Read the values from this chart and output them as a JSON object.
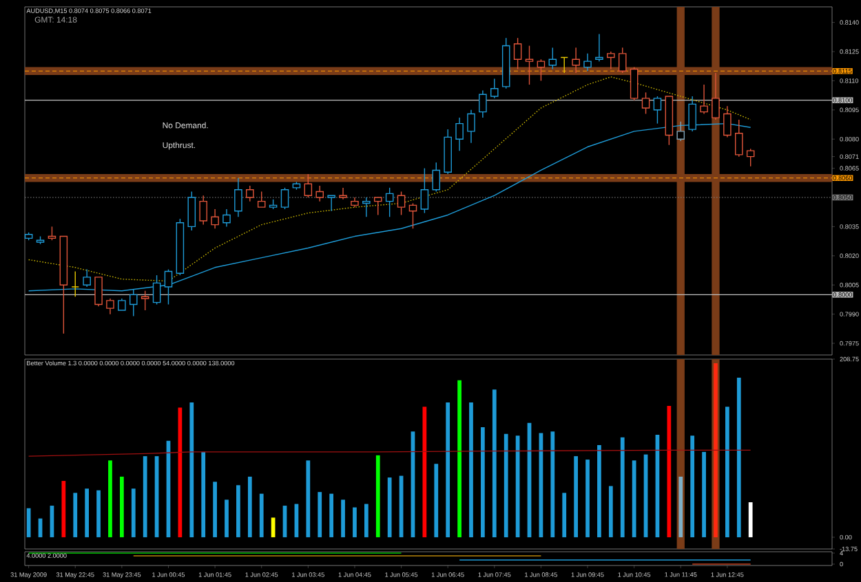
{
  "chart_data": [
    {
      "type": "candlestick",
      "title": "AUDUSD,M15 0.8074 0.8075 0.8066 0.8071",
      "subtitle": "GMT: 14:18",
      "x": [
        "2009-05-31T21:45",
        "2009-05-31T22:00",
        "2009-05-31T22:15",
        "2009-05-31T22:30",
        "2009-05-31T22:45",
        "2009-05-31T23:00",
        "2009-05-31T23:15",
        "2009-05-31T23:30",
        "2009-05-31T23:45",
        "2009-06-01T00:00",
        "2009-06-01T00:15",
        "2009-06-01T00:30",
        "2009-06-01T00:45",
        "2009-06-01T01:00",
        "2009-06-01T01:15",
        "2009-06-01T01:30",
        "2009-06-01T01:45",
        "2009-06-01T02:00",
        "2009-06-01T02:15",
        "2009-06-01T02:30",
        "2009-06-01T02:45",
        "2009-06-01T03:00",
        "2009-06-01T03:15",
        "2009-06-01T03:30",
        "2009-06-01T03:45",
        "2009-06-01T04:00",
        "2009-06-01T04:15",
        "2009-06-01T04:30",
        "2009-06-01T04:45",
        "2009-06-01T05:00",
        "2009-06-01T05:15",
        "2009-06-01T05:30",
        "2009-06-01T05:45",
        "2009-06-01T06:00",
        "2009-06-01T06:15",
        "2009-06-01T06:30",
        "2009-06-01T06:45",
        "2009-06-01T07:00",
        "2009-06-01T07:15",
        "2009-06-01T07:30",
        "2009-06-01T07:45",
        "2009-06-01T08:00",
        "2009-06-01T08:15",
        "2009-06-01T08:30",
        "2009-06-01T08:45",
        "2009-06-01T09:00",
        "2009-06-01T09:15",
        "2009-06-01T09:30",
        "2009-06-01T09:45",
        "2009-06-01T10:00",
        "2009-06-01T10:15",
        "2009-06-01T10:30",
        "2009-06-01T10:45",
        "2009-06-01T11:00",
        "2009-06-01T11:15",
        "2009-06-01T11:30",
        "2009-06-01T11:45",
        "2009-06-01T12:00",
        "2009-06-01T12:15",
        "2009-06-01T12:30",
        "2009-06-01T12:45",
        "2009-06-01T13:00",
        "2009-06-01T13:15"
      ],
      "ohlc": [
        [
          0.8029,
          0.8032,
          0.8028,
          0.8031
        ],
        [
          0.8027,
          0.803,
          0.8026,
          0.8028
        ],
        [
          0.803,
          0.8035,
          0.8028,
          0.8029
        ],
        [
          0.803,
          0.803,
          0.798,
          0.8005
        ],
        [
          0.8004,
          0.8012,
          0.7999,
          0.8004
        ],
        [
          0.8005,
          0.8013,
          0.8004,
          0.8009
        ],
        [
          0.8009,
          0.8009,
          0.7994,
          0.7995
        ],
        [
          0.7997,
          0.7998,
          0.799,
          0.7993
        ],
        [
          0.7992,
          0.7998,
          0.7992,
          0.7997
        ],
        [
          0.7995,
          0.8003,
          0.7989,
          0.8
        ],
        [
          0.7999,
          0.8002,
          0.7992,
          0.7998
        ],
        [
          0.7996,
          0.801,
          0.7995,
          0.8006
        ],
        [
          0.8004,
          0.8013,
          0.7995,
          0.8012
        ],
        [
          0.8011,
          0.8039,
          0.801,
          0.8037
        ],
        [
          0.8035,
          0.8053,
          0.8033,
          0.805
        ],
        [
          0.8048,
          0.8051,
          0.8036,
          0.8038
        ],
        [
          0.804,
          0.8044,
          0.8034,
          0.8036
        ],
        [
          0.8037,
          0.8044,
          0.8035,
          0.8041
        ],
        [
          0.8043,
          0.806,
          0.804,
          0.8054
        ],
        [
          0.8054,
          0.8056,
          0.8048,
          0.805
        ],
        [
          0.8048,
          0.8053,
          0.8045,
          0.8045
        ],
        [
          0.8045,
          0.8049,
          0.8044,
          0.8046
        ],
        [
          0.8045,
          0.8055,
          0.8044,
          0.8054
        ],
        [
          0.8055,
          0.8058,
          0.8054,
          0.8057
        ],
        [
          0.8057,
          0.8062,
          0.805,
          0.8051
        ],
        [
          0.8053,
          0.8056,
          0.8048,
          0.805
        ],
        [
          0.805,
          0.8051,
          0.8043,
          0.8051
        ],
        [
          0.8051,
          0.8055,
          0.8049,
          0.805
        ],
        [
          0.8048,
          0.805,
          0.8045,
          0.8046
        ],
        [
          0.8047,
          0.805,
          0.804,
          0.8048
        ],
        [
          0.805,
          0.805,
          0.8041,
          0.8048
        ],
        [
          0.8048,
          0.8055,
          0.804,
          0.8052
        ],
        [
          0.8051,
          0.8053,
          0.8041,
          0.8045
        ],
        [
          0.8046,
          0.8047,
          0.8034,
          0.8043
        ],
        [
          0.8044,
          0.8065,
          0.8042,
          0.8054
        ],
        [
          0.8054,
          0.8068,
          0.8053,
          0.8064
        ],
        [
          0.8063,
          0.8085,
          0.8062,
          0.8081
        ],
        [
          0.808,
          0.8091,
          0.8074,
          0.8088
        ],
        [
          0.8084,
          0.8095,
          0.8078,
          0.8093
        ],
        [
          0.8094,
          0.8105,
          0.8091,
          0.8103
        ],
        [
          0.8102,
          0.8111,
          0.8101,
          0.8106
        ],
        [
          0.8107,
          0.8132,
          0.8106,
          0.8128
        ],
        [
          0.8129,
          0.8132,
          0.8116,
          0.8121
        ],
        [
          0.8121,
          0.8128,
          0.8108,
          0.812
        ],
        [
          0.812,
          0.8121,
          0.811,
          0.8117
        ],
        [
          0.8118,
          0.8127,
          0.8116,
          0.8121
        ],
        [
          0.8122,
          0.8122,
          0.8114,
          0.8122
        ],
        [
          0.8121,
          0.8127,
          0.8114,
          0.8118
        ],
        [
          0.8117,
          0.8124,
          0.8115,
          0.812
        ],
        [
          0.8121,
          0.8134,
          0.812,
          0.8122
        ],
        [
          0.8124,
          0.8125,
          0.8116,
          0.8122
        ],
        [
          0.8124,
          0.8127,
          0.8114,
          0.8115
        ],
        [
          0.8116,
          0.8117,
          0.81,
          0.8101
        ],
        [
          0.8101,
          0.8104,
          0.8093,
          0.8096
        ],
        [
          0.8095,
          0.8102,
          0.8088,
          0.8101
        ],
        [
          0.8102,
          0.8102,
          0.8077,
          0.8082
        ],
        [
          0.808,
          0.8089,
          0.8079,
          0.8084
        ],
        [
          0.8085,
          0.8102,
          0.8084,
          0.8098
        ],
        [
          0.8097,
          0.8108,
          0.8093,
          0.8094
        ],
        [
          0.8101,
          0.8114,
          0.809,
          0.8091
        ],
        [
          0.8093,
          0.8097,
          0.8081,
          0.8082
        ],
        [
          0.8083,
          0.809,
          0.8071,
          0.8072
        ],
        [
          0.8074,
          0.8075,
          0.8066,
          0.8071
        ]
      ],
      "colors": [
        "#1e9bd7",
        "#1e9bd7",
        "#e0553a",
        "#e0553a",
        "#e6c700",
        "#1e9bd7",
        "#e0553a",
        "#e0553a",
        "#1e9bd7",
        "#1e9bd7",
        "#e0553a",
        "#1e9bd7",
        "#1e9bd7",
        "#1e9bd7",
        "#1e9bd7",
        "#e0553a",
        "#e0553a",
        "#1e9bd7",
        "#1e9bd7",
        "#e0553a",
        "#e0553a",
        "#1e9bd7",
        "#1e9bd7",
        "#1e9bd7",
        "#e0553a",
        "#e0553a",
        "#1e9bd7",
        "#e0553a",
        "#e0553a",
        "#1e9bd7",
        "#e0553a",
        "#1e9bd7",
        "#e0553a",
        "#e0553a",
        "#1e9bd7",
        "#1e9bd7",
        "#1e9bd7",
        "#1e9bd7",
        "#1e9bd7",
        "#1e9bd7",
        "#1e9bd7",
        "#1e9bd7",
        "#e0553a",
        "#e0553a",
        "#e0553a",
        "#1e9bd7",
        "#e6c700",
        "#e0553a",
        "#1e9bd7",
        "#1e9bd7",
        "#e0553a",
        "#e0553a",
        "#e0553a",
        "#e0553a",
        "#1e9bd7",
        "#e0553a",
        "#7fa3b8",
        "#1e9bd7",
        "#e0553a",
        "#e0553a",
        "#e0553a",
        "#e0553a",
        "#e0553a"
      ],
      "series": [
        {
          "type": "line",
          "color": "#c8b400",
          "line_style": "dotted",
          "x": [
            "2009-05-31T21:45",
            "2009-05-31T22:45",
            "2009-05-31T23:45",
            "2009-06-01T00:45",
            "2009-06-01T01:45",
            "2009-06-01T02:45",
            "2009-06-01T03:45",
            "2009-06-01T04:45",
            "2009-06-01T05:45",
            "2009-06-01T06:45",
            "2009-06-01T07:45",
            "2009-06-01T08:45",
            "2009-06-01T09:45",
            "2009-06-01T10:15",
            "2009-06-01T10:45",
            "2009-06-01T11:45",
            "2009-06-01T12:45",
            "2009-06-01T13:15"
          ],
          "values": [
            0.8018,
            0.8014,
            0.8008,
            0.8007,
            0.8024,
            0.8036,
            0.8042,
            0.8045,
            0.8047,
            0.8054,
            0.8075,
            0.8096,
            0.8108,
            0.8112,
            0.8109,
            0.8102,
            0.8095,
            0.809
          ]
        },
        {
          "type": "line",
          "color": "#1e9bd7",
          "line_style": "solid",
          "x": [
            "2009-05-31T21:45",
            "2009-05-31T22:45",
            "2009-05-31T23:45",
            "2009-06-01T00:45",
            "2009-06-01T01:45",
            "2009-06-01T02:45",
            "2009-06-01T03:45",
            "2009-06-01T04:45",
            "2009-06-01T05:45",
            "2009-06-01T06:45",
            "2009-06-01T07:45",
            "2009-06-01T08:45",
            "2009-06-01T09:45",
            "2009-06-01T10:45",
            "2009-06-01T11:45",
            "2009-06-01T12:45",
            "2009-06-01T13:15"
          ],
          "values": [
            0.8002,
            0.8003,
            0.8002,
            0.8005,
            0.8014,
            0.8019,
            0.8024,
            0.803,
            0.8034,
            0.8041,
            0.8051,
            0.8064,
            0.8076,
            0.8084,
            0.8087,
            0.8088,
            0.8086
          ]
        }
      ],
      "xlim": [
        "2009-05-31T21:40",
        "2009-06-01T15:00"
      ],
      "ylim": [
        0.7969,
        0.8148
      ],
      "yticks": [
        {
          "value": 0.814,
          "label": "0.8140"
        },
        {
          "value": 0.8125,
          "label": "0.8125"
        },
        {
          "value": 0.811,
          "label": "0.8110"
        },
        {
          "value": 0.8095,
          "label": "0.8095"
        },
        {
          "value": 0.808,
          "label": "0.8080"
        },
        {
          "value": 0.8071,
          "label": "0.8071"
        },
        {
          "value": 0.8065,
          "label": "0.8065"
        },
        {
          "value": 0.8035,
          "label": "0.8035"
        },
        {
          "value": 0.802,
          "label": "0.8020"
        },
        {
          "value": 0.8005,
          "label": "0.8005"
        },
        {
          "value": 0.799,
          "label": "0.7990"
        },
        {
          "value": 0.7975,
          "label": "0.7975"
        }
      ],
      "tick_labels": "y",
      "ref_lines": [
        {
          "axis": "y",
          "value": 0.8115,
          "label": "0.8115",
          "color": "#ff9900",
          "line_style": "dashed"
        },
        {
          "axis": "y",
          "value": 0.81,
          "label": "0.8100",
          "color": "#c0c0c0",
          "line_style": "solid"
        },
        {
          "axis": "y",
          "value": 0.806,
          "label": "0.8060",
          "color": "#ff9900",
          "line_style": "dashed"
        },
        {
          "axis": "y",
          "value": 0.805,
          "label": "0.8050",
          "color": "#808080",
          "line_style": "dotted"
        },
        {
          "axis": "y",
          "value": 0.8,
          "label": "0.8000",
          "color": "#c0c0c0",
          "line_style": "solid"
        }
      ],
      "bands": [
        {
          "axis": "y",
          "from": 0.8113,
          "to": 0.8117,
          "color": "#7a3c18"
        },
        {
          "axis": "y",
          "from": 0.8058,
          "to": 0.8062,
          "color": "#7a3c18"
        },
        {
          "axis": "x",
          "from": "2009-06-01T11:40",
          "to": "2009-06-01T11:50",
          "color": "#7a3c18"
        },
        {
          "axis": "x",
          "from": "2009-06-01T12:25",
          "to": "2009-06-01T12:35",
          "color": "#7a3c18"
        }
      ],
      "annotations": [
        "No Demand.",
        "Upthrust."
      ]
    },
    {
      "type": "bar",
      "title": "Better Volume 1.3 0.0000 0.0000 0.0000 0.0000 54.0000 0.0000 138.0000",
      "x": [
        "2009-05-31T21:45",
        "2009-05-31T22:00",
        "2009-05-31T22:15",
        "2009-05-31T22:30",
        "2009-05-31T22:45",
        "2009-05-31T23:00",
        "2009-05-31T23:15",
        "2009-05-31T23:30",
        "2009-05-31T23:45",
        "2009-06-01T00:00",
        "2009-06-01T00:15",
        "2009-06-01T00:30",
        "2009-06-01T00:45",
        "2009-06-01T01:00",
        "2009-06-01T01:15",
        "2009-06-01T01:30",
        "2009-06-01T01:45",
        "2009-06-01T02:00",
        "2009-06-01T02:15",
        "2009-06-01T02:30",
        "2009-06-01T02:45",
        "2009-06-01T03:00",
        "2009-06-01T03:15",
        "2009-06-01T03:30",
        "2009-06-01T03:45",
        "2009-06-01T04:00",
        "2009-06-01T04:15",
        "2009-06-01T04:30",
        "2009-06-01T04:45",
        "2009-06-01T05:00",
        "2009-06-01T05:15",
        "2009-06-01T05:30",
        "2009-06-01T05:45",
        "2009-06-01T06:00",
        "2009-06-01T06:15",
        "2009-06-01T06:30",
        "2009-06-01T06:45",
        "2009-06-01T07:00",
        "2009-06-01T07:15",
        "2009-06-01T07:30",
        "2009-06-01T07:45",
        "2009-06-01T08:00",
        "2009-06-01T08:15",
        "2009-06-01T08:30",
        "2009-06-01T08:45",
        "2009-06-01T09:00",
        "2009-06-01T09:15",
        "2009-06-01T09:30",
        "2009-06-01T09:45",
        "2009-06-01T10:00",
        "2009-06-01T10:15",
        "2009-06-01T10:30",
        "2009-06-01T10:45",
        "2009-06-01T11:00",
        "2009-06-01T11:15",
        "2009-06-01T11:30",
        "2009-06-01T11:45",
        "2009-06-01T12:00",
        "2009-06-01T12:15",
        "2009-06-01T12:30",
        "2009-06-01T12:45",
        "2009-06-01T13:00",
        "2009-06-01T13:15"
      ],
      "series": [
        {
          "type": "bar",
          "values": [
            34,
            22,
            37,
            66,
            52,
            57,
            55,
            90,
            71,
            57,
            95,
            95,
            113,
            152,
            158,
            100,
            65,
            44,
            61,
            71,
            51,
            23,
            37,
            39,
            90,
            53,
            51,
            44,
            35,
            39,
            96,
            70,
            72,
            124,
            153,
            86,
            158,
            184,
            158,
            129,
            173,
            121,
            119,
            134,
            122,
            124,
            52,
            95,
            91,
            108,
            60,
            117,
            90,
            97,
            120,
            154,
            71,
            119,
            100,
            204,
            153,
            187,
            41
          ],
          "colors": [
            "#1e9bd7",
            "#1e9bd7",
            "#1e9bd7",
            "#ff0000",
            "#1e9bd7",
            "#1e9bd7",
            "#1e9bd7",
            "#00ff00",
            "#00ff00",
            "#1e9bd7",
            "#1e9bd7",
            "#1e9bd7",
            "#1e9bd7",
            "#ff0000",
            "#1e9bd7",
            "#1e9bd7",
            "#1e9bd7",
            "#1e9bd7",
            "#1e9bd7",
            "#1e9bd7",
            "#1e9bd7",
            "#ffff00",
            "#1e9bd7",
            "#1e9bd7",
            "#1e9bd7",
            "#1e9bd7",
            "#1e9bd7",
            "#1e9bd7",
            "#1e9bd7",
            "#1e9bd7",
            "#00ff00",
            "#1e9bd7",
            "#1e9bd7",
            "#1e9bd7",
            "#ff0000",
            "#1e9bd7",
            "#1e9bd7",
            "#00ff00",
            "#1e9bd7",
            "#1e9bd7",
            "#1e9bd7",
            "#1e9bd7",
            "#1e9bd7",
            "#1e9bd7",
            "#1e9bd7",
            "#1e9bd7",
            "#1e9bd7",
            "#1e9bd7",
            "#1e9bd7",
            "#1e9bd7",
            "#1e9bd7",
            "#1e9bd7",
            "#1e9bd7",
            "#1e9bd7",
            "#1e9bd7",
            "#ff0000",
            "#7fb0c8",
            "#1e9bd7",
            "#1e9bd7",
            "#ff2a10",
            "#1e9bd7",
            "#1e9bd7",
            "#ffffff"
          ]
        },
        {
          "type": "line",
          "color": "#a01010",
          "line_style": "solid",
          "x": [
            "2009-05-31T21:45",
            "2009-06-01T00:15",
            "2009-06-01T01:15",
            "2009-06-01T05:15",
            "2009-06-01T07:45",
            "2009-06-01T11:30",
            "2009-06-01T13:15"
          ],
          "values": [
            95,
            98,
            100,
            100,
            101,
            102,
            102
          ]
        }
      ],
      "xlim": [
        "2009-05-31T21:40",
        "2009-06-01T15:00"
      ],
      "ylim": [
        -13.75,
        208.75
      ],
      "yticks": [
        208.75,
        {
          "value": 0,
          "label": "0.00"
        },
        {
          "value": -13.75,
          "label": "-13.75"
        }
      ],
      "tick_labels": "y",
      "bands": [
        {
          "axis": "x",
          "from": "2009-06-01T11:40",
          "to": "2009-06-01T11:50",
          "color": "#7a3c18"
        },
        {
          "axis": "x",
          "from": "2009-06-01T12:25",
          "to": "2009-06-01T12:35",
          "color": "#7a3c18"
        }
      ]
    },
    {
      "type": "line",
      "title": "4.0000 2.0000",
      "series": [
        {
          "color": "#00c000",
          "x": [
            "2009-05-31T21:45",
            "2009-06-01T05:45"
          ],
          "values": [
            4,
            4
          ]
        },
        {
          "color": "#b8860b",
          "x": [
            "2009-06-01T00:00",
            "2009-06-01T08:45"
          ],
          "values": [
            3,
            3
          ]
        },
        {
          "color": "#1e9bd7",
          "x": [
            "2009-06-01T07:00",
            "2009-06-01T13:15"
          ],
          "values": [
            1.5,
            1.5
          ]
        },
        {
          "color": "#c04020",
          "x": [
            "2009-06-01T12:00",
            "2009-06-01T13:15"
          ],
          "values": [
            0,
            0
          ]
        }
      ],
      "xlim": [
        "2009-05-31T21:40",
        "2009-06-01T15:00"
      ],
      "ylim": [
        -0.5,
        4.5
      ],
      "yticks": [
        4,
        0
      ],
      "xticks": [
        {
          "value": "2009-05-31T21:45",
          "label": "31 May 2009"
        },
        {
          "value": "2009-05-31T22:45",
          "label": "31 May 22:45"
        },
        {
          "value": "2009-05-31T23:45",
          "label": "31 May 23:45"
        },
        {
          "value": "2009-06-01T00:45",
          "label": "1 Jun 00:45"
        },
        {
          "value": "2009-06-01T01:45",
          "label": "1 Jun 01:45"
        },
        {
          "value": "2009-06-01T02:45",
          "label": "1 Jun 02:45"
        },
        {
          "value": "2009-06-01T03:45",
          "label": "1 Jun 03:45"
        },
        {
          "value": "2009-06-01T04:45",
          "label": "1 Jun 04:45"
        },
        {
          "value": "2009-06-01T05:45",
          "label": "1 Jun 05:45"
        },
        {
          "value": "2009-06-01T06:45",
          "label": "1 Jun 06:45"
        },
        {
          "value": "2009-06-01T07:45",
          "label": "1 Jun 07:45"
        },
        {
          "value": "2009-06-01T08:45",
          "label": "1 Jun 08:45"
        },
        {
          "value": "2009-06-01T09:45",
          "label": "1 Jun 09:45"
        },
        {
          "value": "2009-06-01T10:45",
          "label": "1 Jun 10:45"
        },
        {
          "value": "2009-06-01T11:45",
          "label": "1 Jun 11:45"
        },
        {
          "value": "2009-06-01T12:45",
          "label": "1 Jun 12:45"
        }
      ]
    }
  ]
}
